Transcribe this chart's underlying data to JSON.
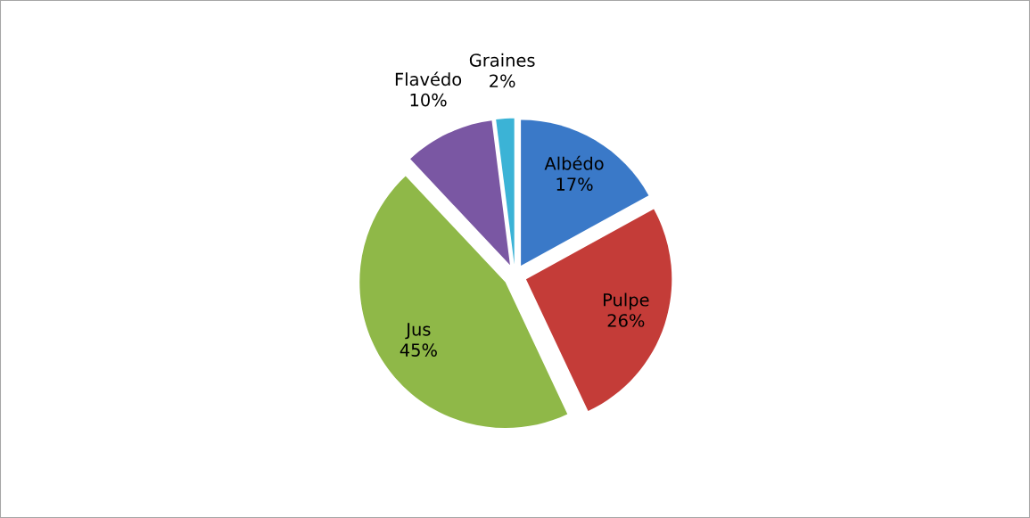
{
  "chart_data": {
    "type": "pie",
    "categories": [
      "Albédo",
      "Pulpe",
      "Jus",
      "Flavédo",
      "Graines"
    ],
    "values": [
      17,
      26,
      45,
      10,
      2
    ],
    "value_labels": [
      "17%",
      "26%",
      "45%",
      "10%",
      "2%"
    ],
    "colors": [
      "#3a79c8",
      "#c43c38",
      "#8fb848",
      "#7a57a3",
      "#3bb3d6"
    ],
    "legend": false
  }
}
